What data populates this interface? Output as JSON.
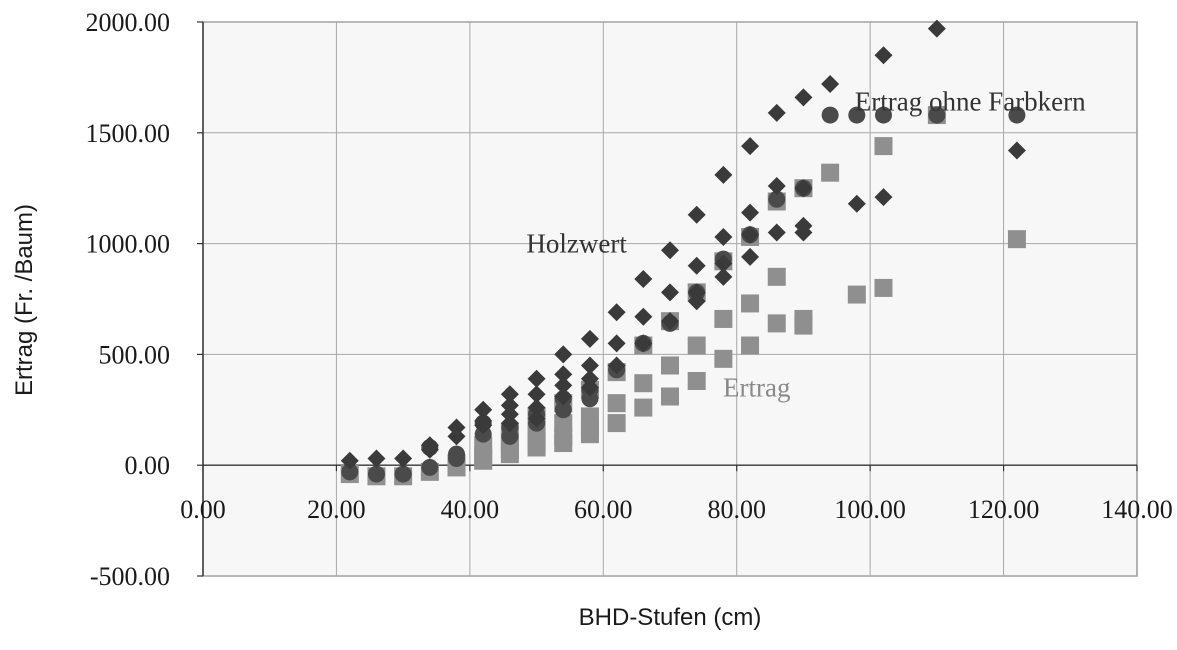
{
  "chart_data": {
    "type": "scatter",
    "xlabel": "BHD-Stufen (cm)",
    "ylabel": "Ertrag (Fr. /Baum)",
    "xlim": [
      0,
      140
    ],
    "ylim": [
      -500,
      2000
    ],
    "x_ticks": [
      "0.00",
      "20.00",
      "40.00",
      "60.00",
      "80.00",
      "100.00",
      "120.00",
      "140.00"
    ],
    "y_ticks": [
      "2000.00",
      "1500.00",
      "1000.00",
      "500.00",
      "0.00",
      "-500.00"
    ],
    "x_tick_values": [
      0,
      20,
      40,
      60,
      80,
      100,
      120,
      140
    ],
    "y_tick_values": [
      2000,
      1500,
      1000,
      500,
      0,
      -500
    ],
    "grid": true,
    "annotations": [
      {
        "text": "Holzwert",
        "x": 56,
        "y": 960,
        "color": "#333333"
      },
      {
        "text": "Ertrag ohne Farbkern",
        "x": 115,
        "y": 1600,
        "color": "#333333"
      },
      {
        "text": "Ertrag",
        "x": 83,
        "y": 310,
        "color": "#8a8a8a"
      }
    ],
    "series": [
      {
        "marker": "diamond",
        "color": "#3a3a3a",
        "points": [
          [
            22,
            20
          ],
          [
            26,
            30
          ],
          [
            30,
            30
          ],
          [
            34,
            90
          ],
          [
            34,
            70
          ],
          [
            38,
            170
          ],
          [
            38,
            130
          ],
          [
            42,
            250
          ],
          [
            42,
            200
          ],
          [
            42,
            180
          ],
          [
            46,
            320
          ],
          [
            46,
            270
          ],
          [
            46,
            230
          ],
          [
            46,
            190
          ],
          [
            50,
            390
          ],
          [
            50,
            320
          ],
          [
            50,
            260
          ],
          [
            50,
            210
          ],
          [
            54,
            500
          ],
          [
            54,
            410
          ],
          [
            54,
            360
          ],
          [
            54,
            310
          ],
          [
            58,
            570
          ],
          [
            58,
            450
          ],
          [
            58,
            390
          ],
          [
            58,
            350
          ],
          [
            62,
            690
          ],
          [
            62,
            550
          ],
          [
            62,
            450
          ],
          [
            66,
            840
          ],
          [
            66,
            670
          ],
          [
            66,
            550
          ],
          [
            70,
            970
          ],
          [
            70,
            780
          ],
          [
            70,
            650
          ],
          [
            74,
            1130
          ],
          [
            74,
            900
          ],
          [
            74,
            780
          ],
          [
            74,
            740
          ],
          [
            78,
            1310
          ],
          [
            78,
            1030
          ],
          [
            78,
            910
          ],
          [
            78,
            850
          ],
          [
            82,
            1440
          ],
          [
            82,
            1140
          ],
          [
            82,
            1040
          ],
          [
            82,
            940
          ],
          [
            86,
            1590
          ],
          [
            86,
            1260
          ],
          [
            86,
            1050
          ],
          [
            90,
            1660
          ],
          [
            90,
            1250
          ],
          [
            90,
            1080
          ],
          [
            90,
            1050
          ],
          [
            94,
            1720
          ],
          [
            98,
            1180
          ],
          [
            102,
            1850
          ],
          [
            102,
            1210
          ],
          [
            110,
            1970
          ],
          [
            122,
            1420
          ]
        ]
      },
      {
        "marker": "circle",
        "color": "#4a4a4a",
        "points": [
          [
            22,
            -30
          ],
          [
            26,
            -40
          ],
          [
            30,
            -40
          ],
          [
            34,
            80
          ],
          [
            34,
            -10
          ],
          [
            38,
            50
          ],
          [
            38,
            30
          ],
          [
            42,
            190
          ],
          [
            42,
            140
          ],
          [
            46,
            170
          ],
          [
            46,
            130
          ],
          [
            50,
            230
          ],
          [
            50,
            190
          ],
          [
            54,
            300
          ],
          [
            54,
            250
          ],
          [
            58,
            340
          ],
          [
            58,
            300
          ],
          [
            62,
            430
          ],
          [
            66,
            550
          ],
          [
            70,
            640
          ],
          [
            74,
            780
          ],
          [
            78,
            930
          ],
          [
            82,
            1040
          ],
          [
            86,
            1200
          ],
          [
            90,
            1250
          ],
          [
            94,
            1580
          ],
          [
            98,
            1580
          ],
          [
            102,
            1580
          ],
          [
            110,
            1580
          ],
          [
            122,
            1580
          ]
        ]
      },
      {
        "marker": "square",
        "color": "#8f8f8f",
        "points": [
          [
            22,
            -40
          ],
          [
            26,
            -50
          ],
          [
            30,
            -50
          ],
          [
            34,
            -30
          ],
          [
            38,
            10
          ],
          [
            38,
            -10
          ],
          [
            42,
            90
          ],
          [
            42,
            40
          ],
          [
            42,
            20
          ],
          [
            46,
            150
          ],
          [
            46,
            110
          ],
          [
            46,
            70
          ],
          [
            46,
            50
          ],
          [
            50,
            220
          ],
          [
            50,
            160
          ],
          [
            50,
            110
          ],
          [
            50,
            80
          ],
          [
            54,
            280
          ],
          [
            54,
            190
          ],
          [
            54,
            130
          ],
          [
            54,
            100
          ],
          [
            58,
            340
          ],
          [
            58,
            220
          ],
          [
            58,
            170
          ],
          [
            58,
            140
          ],
          [
            62,
            420
          ],
          [
            62,
            280
          ],
          [
            62,
            190
          ],
          [
            66,
            540
          ],
          [
            66,
            370
          ],
          [
            66,
            260
          ],
          [
            70,
            650
          ],
          [
            70,
            450
          ],
          [
            70,
            310
          ],
          [
            74,
            780
          ],
          [
            74,
            540
          ],
          [
            74,
            380
          ],
          [
            78,
            920
          ],
          [
            78,
            660
          ],
          [
            78,
            480
          ],
          [
            82,
            1030
          ],
          [
            82,
            730
          ],
          [
            82,
            540
          ],
          [
            86,
            1190
          ],
          [
            86,
            850
          ],
          [
            86,
            640
          ],
          [
            90,
            1250
          ],
          [
            90,
            660
          ],
          [
            90,
            630
          ],
          [
            94,
            1320
          ],
          [
            98,
            770
          ],
          [
            102,
            1440
          ],
          [
            102,
            800
          ],
          [
            110,
            1580
          ],
          [
            122,
            1020
          ]
        ]
      }
    ]
  }
}
